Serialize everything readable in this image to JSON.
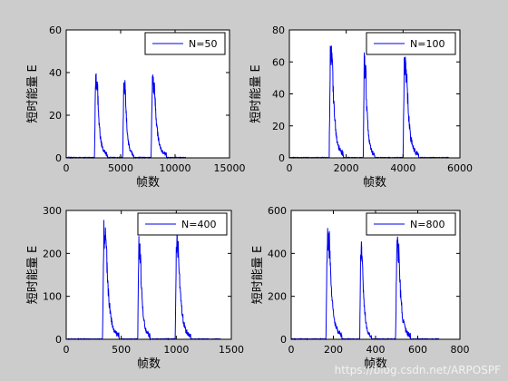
{
  "figure": {
    "background": "#cccccc",
    "axes_background": "#ffffff",
    "line_color": "#0000ee"
  },
  "watermark": "https://blog.csdn.net/ARPOSPF",
  "chart_data": [
    {
      "type": "line",
      "legend": "N=50",
      "legend_position": "top-right",
      "xlabel": "帧数",
      "ylabel": "短时能量 E",
      "xlim": [
        0,
        15000
      ],
      "ylim": [
        0,
        60
      ],
      "xticks": [
        "0",
        "5000",
        "10000",
        "15000"
      ],
      "yticks": [
        "0",
        "20",
        "40",
        "60"
      ],
      "x_end": 11000,
      "bursts": [
        {
          "start": 2600,
          "end": 3800,
          "peak": 41
        },
        {
          "start": 5200,
          "end": 6200,
          "peak": 39
        },
        {
          "start": 7800,
          "end": 9200,
          "peak": 41
        }
      ]
    },
    {
      "type": "line",
      "legend": "N=100",
      "legend_position": "top-right",
      "xlabel": "帧数",
      "ylabel": "短时能量 E",
      "xlim": [
        0,
        6000
      ],
      "ylim": [
        0,
        80
      ],
      "xticks": [
        "0",
        "2000",
        "4000",
        "6000"
      ],
      "yticks": [
        "0",
        "20",
        "40",
        "60",
        "80"
      ],
      "x_end": 5600,
      "bursts": [
        {
          "start": 1400,
          "end": 1900,
          "peak": 74
        },
        {
          "start": 2600,
          "end": 3000,
          "peak": 64
        },
        {
          "start": 4000,
          "end": 4550,
          "peak": 66
        }
      ]
    },
    {
      "type": "line",
      "legend": "N=400",
      "legend_position": "top-right",
      "xlabel": "帧数",
      "ylabel": "短时能量 E",
      "xlim": [
        0,
        1500
      ],
      "ylim": [
        0,
        300
      ],
      "xticks": [
        "0",
        "500",
        "1000",
        "1500"
      ],
      "yticks": [
        "0",
        "100",
        "200",
        "300"
      ],
      "x_end": 1400,
      "bursts": [
        {
          "start": 330,
          "end": 480,
          "peak": 268
        },
        {
          "start": 650,
          "end": 760,
          "peak": 235
        },
        {
          "start": 990,
          "end": 1130,
          "peak": 242
        }
      ]
    },
    {
      "type": "line",
      "legend": "N=800",
      "legend_position": "top-right",
      "xlabel": "帧数",
      "ylabel": "短时能量 E",
      "xlim": [
        0,
        800
      ],
      "ylim": [
        0,
        600
      ],
      "xticks": [
        "0",
        "200",
        "400",
        "600",
        "800"
      ],
      "yticks": [
        "0",
        "200",
        "400",
        "600"
      ],
      "x_end": 700,
      "bursts": [
        {
          "start": 165,
          "end": 240,
          "peak": 530
        },
        {
          "start": 325,
          "end": 380,
          "peak": 462
        },
        {
          "start": 495,
          "end": 565,
          "peak": 490
        }
      ]
    }
  ]
}
